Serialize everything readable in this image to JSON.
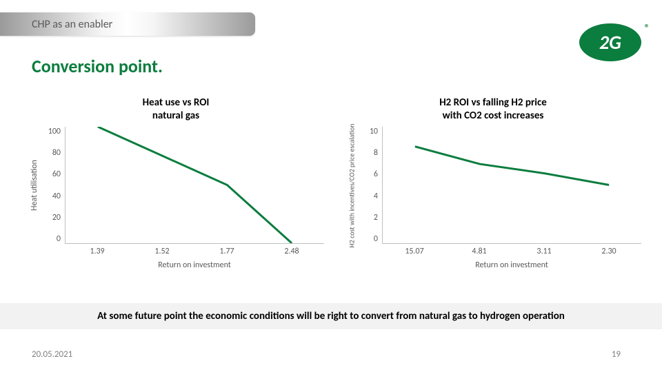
{
  "tab": {
    "label": "CHP as an enabler"
  },
  "logo": {
    "text": "2G",
    "registered": "®",
    "bg": "#0b7d3e",
    "fg": "#ffffff"
  },
  "title": "Conversion point.",
  "chart1": {
    "type": "line",
    "title": "Heat use vs ROI\nnatural gas",
    "xlabel": "Return on investment",
    "ylabel": "Heat utilisation",
    "x_categories": [
      "1.39",
      "1.52",
      "1.77",
      "2.48"
    ],
    "y_values": [
      100,
      75,
      50,
      0
    ],
    "ylim": [
      0,
      100
    ],
    "ytick_step": 20,
    "yticks": [
      "100",
      "80",
      "60",
      "40",
      "20",
      "0"
    ],
    "line_color": "#0b7d3e",
    "line_width": 3,
    "axis_color": "#bfbfbf",
    "tick_font_size": 12,
    "tick_color": "#595959",
    "title_font_size": 15,
    "title_color": "#000000",
    "background_color": "#ffffff"
  },
  "chart2": {
    "type": "line",
    "title": "H2 ROI vs falling H2 price\nwith CO2 cost increases",
    "xlabel": "Return on investment",
    "ylabel": "H2 cost with incentives/CO2 price\nescalation",
    "x_categories": [
      "15.07",
      "4.81",
      "3.11",
      "2.30"
    ],
    "y_values": [
      8.3,
      6.8,
      6.0,
      5.0
    ],
    "ylim": [
      0,
      10
    ],
    "ytick_step": 2,
    "yticks": [
      "10",
      "8",
      "6",
      "4",
      "2",
      "0"
    ],
    "line_color": "#0b7d3e",
    "line_width": 3,
    "axis_color": "#bfbfbf",
    "tick_font_size": 12,
    "tick_color": "#595959",
    "title_font_size": 15,
    "title_color": "#000000",
    "background_color": "#ffffff"
  },
  "footer_text": "At some future point the economic conditions will be right to convert from natural gas to hydrogen operation",
  "date": "20.05.2021",
  "page_number": "19",
  "colors": {
    "brand_green": "#0b7d3e",
    "footer_bg": "#f2f2f2",
    "muted_text": "#7f7f7f",
    "axis_text": "#595959"
  }
}
